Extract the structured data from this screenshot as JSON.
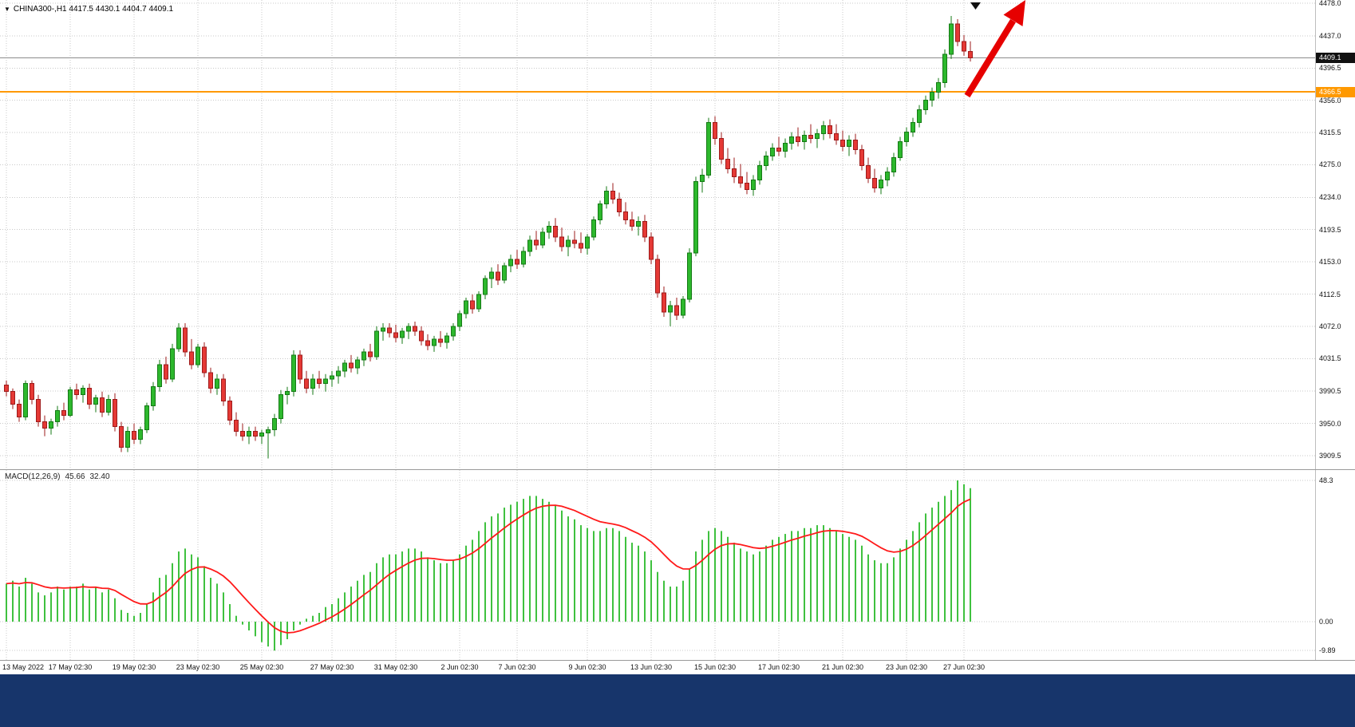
{
  "header": {
    "dropdown_icon": "▼",
    "display": "CHINA300-,H1 4417.5 4430.1 4404.7 4409.1"
  },
  "taskbar": {
    "color": "#17356b"
  },
  "chart_data": {
    "type": "candlestick",
    "symbol": "CHINA300-",
    "timeframe": "H1",
    "title": "CHINA300-,H1",
    "current_bar": {
      "open": 4417.5,
      "high": 4430.1,
      "low": 4404.7,
      "close": 4409.1
    },
    "ylim": [
      3909.5,
      4478.0
    ],
    "grid": true,
    "price_axis": {
      "ticks": [
        4478.0,
        4437.0,
        4396.5,
        4356.0,
        4315.5,
        4275.0,
        4234.0,
        4193.5,
        4153.0,
        4112.5,
        4072.0,
        4031.5,
        3990.5,
        3950.0,
        3909.5
      ],
      "labels": [
        "4478.0",
        "4437.0",
        "4396.5",
        "4356.0",
        "4315.5",
        "4275.0",
        "4234.0",
        "4193.5",
        "4153.0",
        "4112.5",
        "4072.0",
        "4031.5",
        "3990.5",
        "3950.0",
        "3909.5"
      ]
    },
    "time_axis": [
      {
        "label": "13 May 2022",
        "i": 0
      },
      {
        "label": "17 May 02:30",
        "i": 10
      },
      {
        "label": "19 May 02:30",
        "i": 20
      },
      {
        "label": "23 May 02:30",
        "i": 30
      },
      {
        "label": "25 May 02:30",
        "i": 40
      },
      {
        "label": "27 May 02:30",
        "i": 51
      },
      {
        "label": "31 May 02:30",
        "i": 61
      },
      {
        "label": "2 Jun 02:30",
        "i": 71
      },
      {
        "label": "7 Jun 02:30",
        "i": 80
      },
      {
        "label": "9 Jun 02:30",
        "i": 91
      },
      {
        "label": "13 Jun 02:30",
        "i": 101
      },
      {
        "label": "15 Jun 02:30",
        "i": 111
      },
      {
        "label": "17 Jun 02:30",
        "i": 121
      },
      {
        "label": "21 Jun 02:30",
        "i": 131
      },
      {
        "label": "23 Jun 02:30",
        "i": 141
      },
      {
        "label": "27 Jun 02:30",
        "i": 150
      }
    ],
    "current_price": 4409.1,
    "current_price_label": "4409.1",
    "horizontal_line": {
      "value": 4366.5,
      "label": "4366.5",
      "color": "#ff9900"
    },
    "candles": [
      [
        3998,
        4004,
        3984,
        3990
      ],
      [
        3990,
        3994,
        3968,
        3974
      ],
      [
        3974,
        3980,
        3952,
        3958
      ],
      [
        3958,
        4004,
        3954,
        4000
      ],
      [
        4000,
        4004,
        3974,
        3980
      ],
      [
        3980,
        3986,
        3946,
        3952
      ],
      [
        3952,
        3960,
        3934,
        3944
      ],
      [
        3944,
        3956,
        3936,
        3952
      ],
      [
        3952,
        3972,
        3946,
        3966
      ],
      [
        3966,
        3976,
        3954,
        3960
      ],
      [
        3960,
        3996,
        3958,
        3992
      ],
      [
        3992,
        4000,
        3980,
        3986
      ],
      [
        3986,
        3998,
        3976,
        3994
      ],
      [
        3994,
        4000,
        3968,
        3974
      ],
      [
        3974,
        3986,
        3964,
        3982
      ],
      [
        3982,
        3990,
        3958,
        3964
      ],
      [
        3964,
        3986,
        3960,
        3980
      ],
      [
        3980,
        3988,
        3940,
        3946
      ],
      [
        3946,
        3952,
        3914,
        3920
      ],
      [
        3920,
        3946,
        3914,
        3940
      ],
      [
        3940,
        3950,
        3924,
        3930
      ],
      [
        3930,
        3946,
        3924,
        3942
      ],
      [
        3942,
        3976,
        3938,
        3972
      ],
      [
        3972,
        4002,
        3966,
        3996
      ],
      [
        3996,
        4030,
        3990,
        4024
      ],
      [
        4024,
        4034,
        4000,
        4006
      ],
      [
        4006,
        4050,
        4002,
        4044
      ],
      [
        4044,
        4076,
        4040,
        4070
      ],
      [
        4070,
        4076,
        4034,
        4040
      ],
      [
        4040,
        4056,
        4018,
        4024
      ],
      [
        4024,
        4050,
        4020,
        4046
      ],
      [
        4046,
        4052,
        4008,
        4014
      ],
      [
        4014,
        4020,
        3988,
        3994
      ],
      [
        3994,
        4012,
        3986,
        4006
      ],
      [
        4006,
        4012,
        3972,
        3978
      ],
      [
        3978,
        3984,
        3948,
        3954
      ],
      [
        3954,
        3964,
        3934,
        3940
      ],
      [
        3940,
        3950,
        3928,
        3934
      ],
      [
        3934,
        3946,
        3924,
        3940
      ],
      [
        3940,
        3946,
        3928,
        3934
      ],
      [
        3934,
        3942,
        3924,
        3938
      ],
      [
        3938,
        3946,
        3906,
        3942
      ],
      [
        3942,
        3962,
        3934,
        3956
      ],
      [
        3956,
        3992,
        3950,
        3986
      ],
      [
        3986,
        3996,
        3974,
        3990
      ],
      [
        3990,
        4042,
        3984,
        4036
      ],
      [
        4036,
        4042,
        4000,
        4006
      ],
      [
        4006,
        4016,
        3988,
        3994
      ],
      [
        3994,
        4012,
        3986,
        4006
      ],
      [
        4006,
        4016,
        3994,
        4000
      ],
      [
        4000,
        4012,
        3990,
        4006
      ],
      [
        4006,
        4016,
        3996,
        4010
      ],
      [
        4010,
        4022,
        4000,
        4016
      ],
      [
        4016,
        4030,
        4008,
        4026
      ],
      [
        4026,
        4036,
        4014,
        4020
      ],
      [
        4020,
        4034,
        4012,
        4030
      ],
      [
        4030,
        4044,
        4022,
        4040
      ],
      [
        4040,
        4050,
        4028,
        4034
      ],
      [
        4034,
        4072,
        4030,
        4066
      ],
      [
        4066,
        4076,
        4054,
        4070
      ],
      [
        4070,
        4076,
        4058,
        4064
      ],
      [
        4064,
        4074,
        4052,
        4058
      ],
      [
        4058,
        4070,
        4050,
        4066
      ],
      [
        4066,
        4076,
        4056,
        4072
      ],
      [
        4072,
        4078,
        4060,
        4066
      ],
      [
        4066,
        4072,
        4048,
        4054
      ],
      [
        4054,
        4062,
        4042,
        4048
      ],
      [
        4048,
        4060,
        4040,
        4056
      ],
      [
        4056,
        4066,
        4046,
        4052
      ],
      [
        4052,
        4064,
        4044,
        4060
      ],
      [
        4060,
        4076,
        4054,
        4072
      ],
      [
        4072,
        4092,
        4066,
        4088
      ],
      [
        4088,
        4108,
        4082,
        4104
      ],
      [
        4104,
        4112,
        4088,
        4094
      ],
      [
        4094,
        4116,
        4090,
        4112
      ],
      [
        4112,
        4136,
        4106,
        4132
      ],
      [
        4132,
        4146,
        4120,
        4140
      ],
      [
        4140,
        4150,
        4124,
        4130
      ],
      [
        4130,
        4152,
        4126,
        4148
      ],
      [
        4148,
        4162,
        4140,
        4156
      ],
      [
        4156,
        4168,
        4144,
        4150
      ],
      [
        4150,
        4172,
        4146,
        4166
      ],
      [
        4166,
        4186,
        4160,
        4180
      ],
      [
        4180,
        4192,
        4168,
        4174
      ],
      [
        4174,
        4196,
        4170,
        4190
      ],
      [
        4190,
        4204,
        4182,
        4198
      ],
      [
        4198,
        4208,
        4178,
        4184
      ],
      [
        4184,
        4196,
        4166,
        4172
      ],
      [
        4172,
        4186,
        4160,
        4180
      ],
      [
        4180,
        4192,
        4170,
        4176
      ],
      [
        4176,
        4190,
        4164,
        4170
      ],
      [
        4170,
        4188,
        4162,
        4184
      ],
      [
        4184,
        4210,
        4180,
        4206
      ],
      [
        4206,
        4230,
        4200,
        4226
      ],
      [
        4226,
        4248,
        4220,
        4242
      ],
      [
        4242,
        4252,
        4226,
        4232
      ],
      [
        4232,
        4240,
        4210,
        4216
      ],
      [
        4216,
        4228,
        4200,
        4206
      ],
      [
        4206,
        4216,
        4192,
        4198
      ],
      [
        4198,
        4210,
        4186,
        4204
      ],
      [
        4204,
        4212,
        4178,
        4184
      ],
      [
        4184,
        4190,
        4150,
        4156
      ],
      [
        4156,
        4162,
        4108,
        4114
      ],
      [
        4114,
        4122,
        4084,
        4090
      ],
      [
        4090,
        4104,
        4072,
        4098
      ],
      [
        4098,
        4108,
        4080,
        4086
      ],
      [
        4086,
        4110,
        4082,
        4106
      ],
      [
        4106,
        4170,
        4102,
        4164
      ],
      [
        4164,
        4260,
        4160,
        4254
      ],
      [
        4254,
        4270,
        4240,
        4262
      ],
      [
        4262,
        4334,
        4258,
        4328
      ],
      [
        4328,
        4336,
        4300,
        4308
      ],
      [
        4308,
        4316,
        4276,
        4282
      ],
      [
        4282,
        4296,
        4264,
        4270
      ],
      [
        4270,
        4284,
        4252,
        4260
      ],
      [
        4260,
        4276,
        4246,
        4252
      ],
      [
        4252,
        4266,
        4238,
        4244
      ],
      [
        4244,
        4262,
        4236,
        4256
      ],
      [
        4256,
        4280,
        4250,
        4274
      ],
      [
        4274,
        4292,
        4268,
        4286
      ],
      [
        4286,
        4302,
        4280,
        4296
      ],
      [
        4296,
        4310,
        4286,
        4292
      ],
      [
        4292,
        4308,
        4284,
        4302
      ],
      [
        4302,
        4316,
        4294,
        4310
      ],
      [
        4310,
        4322,
        4298,
        4304
      ],
      [
        4304,
        4318,
        4294,
        4312
      ],
      [
        4312,
        4326,
        4302,
        4308
      ],
      [
        4308,
        4320,
        4296,
        4314
      ],
      [
        4314,
        4330,
        4306,
        4324
      ],
      [
        4324,
        4332,
        4308,
        4314
      ],
      [
        4314,
        4326,
        4300,
        4306
      ],
      [
        4306,
        4318,
        4292,
        4298
      ],
      [
        4298,
        4312,
        4286,
        4306
      ],
      [
        4306,
        4314,
        4288,
        4294
      ],
      [
        4294,
        4300,
        4268,
        4274
      ],
      [
        4274,
        4284,
        4252,
        4258
      ],
      [
        4258,
        4270,
        4240,
        4246
      ],
      [
        4246,
        4262,
        4238,
        4256
      ],
      [
        4256,
        4272,
        4248,
        4266
      ],
      [
        4266,
        4290,
        4260,
        4284
      ],
      [
        4284,
        4310,
        4280,
        4304
      ],
      [
        4304,
        4322,
        4298,
        4316
      ],
      [
        4316,
        4334,
        4310,
        4328
      ],
      [
        4328,
        4350,
        4322,
        4344
      ],
      [
        4344,
        4362,
        4338,
        4356
      ],
      [
        4356,
        4372,
        4348,
        4366
      ],
      [
        4366,
        4384,
        4358,
        4378
      ],
      [
        4378,
        4420,
        4372,
        4414
      ],
      [
        4414,
        4462,
        4408,
        4452
      ],
      [
        4452,
        4458,
        4424,
        4430
      ],
      [
        4430,
        4438,
        4412,
        4418
      ],
      [
        4417.5,
        4430.1,
        4404.7,
        4409.1
      ]
    ],
    "macd": {
      "title": "MACD(12,26,9)",
      "value_main": "45.66",
      "value_signal": "32.40",
      "signal_period": 9,
      "axis_labels": [
        "48.3",
        "0.00",
        "-9.89"
      ],
      "axis_values": [
        48.3,
        0.0,
        -9.89
      ],
      "histogram": [
        13,
        14,
        12,
        15,
        13,
        10,
        9,
        10,
        12,
        11,
        12,
        12,
        13,
        11,
        12,
        10,
        11,
        8,
        4,
        3,
        2,
        3,
        6,
        10,
        15,
        16,
        20,
        24,
        25,
        23,
        22,
        19,
        15,
        13,
        10,
        6,
        2,
        -1,
        -3,
        -5,
        -7,
        -8.5,
        -9.89,
        -8,
        -6,
        -3,
        -1,
        1,
        2,
        3,
        5,
        6,
        8,
        10,
        12,
        14,
        16,
        17,
        20,
        22,
        23,
        23,
        24,
        25,
        25,
        24,
        22,
        21,
        20,
        20,
        21,
        23,
        26,
        28,
        31,
        34,
        36,
        37,
        39,
        40,
        41,
        42,
        43,
        43,
        42,
        41,
        40,
        38,
        36,
        35,
        33,
        32,
        31,
        31,
        32,
        32,
        31,
        29,
        27,
        26,
        24,
        21,
        17,
        14,
        12,
        12,
        14,
        18,
        24,
        28,
        31,
        32,
        31,
        29,
        27,
        25,
        24,
        23,
        24,
        26,
        28,
        29,
        30,
        31,
        31,
        32,
        32,
        33,
        33,
        32,
        31,
        30,
        29,
        28,
        26,
        23,
        21,
        20,
        20,
        22,
        25,
        28,
        31,
        34,
        37,
        39,
        41,
        43,
        45,
        48.3,
        47,
        45.66
      ]
    },
    "annotations": {
      "trend_arrow": {
        "shape": "up-right-arrow",
        "color": "#e60000"
      },
      "top_marker": {
        "shape": "down-triangle",
        "color": "#111111"
      }
    },
    "colors": {
      "bull": "#2db82d",
      "bull_border": "#157a15",
      "bear": "#e53935",
      "bear_border": "#9e1b1b",
      "grid": "#c9c9c9",
      "hist": "#3fc13f",
      "signal": "#ff1a1a",
      "price_line": "#8c8c8c",
      "badge_bg": "#111111",
      "badge_fg": "#ffffff",
      "hline": "#ff9900"
    }
  }
}
